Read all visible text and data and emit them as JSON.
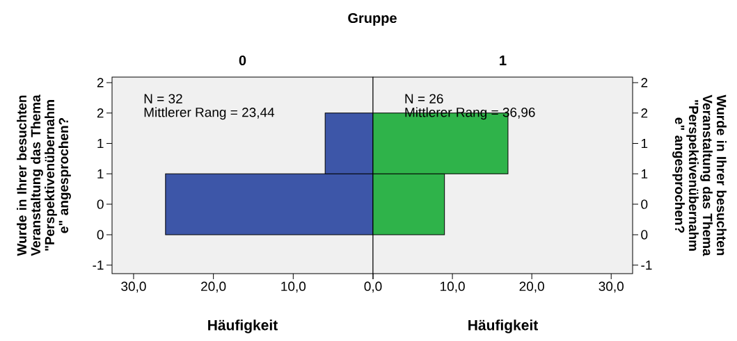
{
  "chart_data": [
    {
      "type": "histogram",
      "orientation": "horizontal",
      "title": "Gruppe",
      "subtitle": "0",
      "xlabel": "Häufigkeit",
      "ylabel": "Wurde in Ihrer besuchten Veranstaltung das Thema \"Perspektivenübernahm e\" angesprochen?",
      "bins": [
        -0.5,
        0.5,
        1.5
      ],
      "values": [
        26,
        6
      ],
      "color": "#3d56a8",
      "xlim": [
        32.7,
        0
      ],
      "xticks": [
        {
          "value": 30,
          "label": "30,0"
        },
        {
          "value": 20,
          "label": "20,0"
        },
        {
          "value": 10,
          "label": "10,0"
        },
        {
          "value": 0,
          "label": null
        }
      ],
      "ylim": [
        -1.14,
        2.09
      ],
      "yticks": [
        -1,
        {
          "value": -0.5,
          "label": "0"
        },
        0,
        {
          "value": 0.5,
          "label": "1"
        },
        1,
        {
          "value": 1.5,
          "label": "2"
        },
        2
      ],
      "annotations": [
        "N = 32",
        "Mittlerer Rang = 23,44"
      ]
    },
    {
      "type": "histogram",
      "orientation": "horizontal",
      "subtitle": "1",
      "xlabel": "Häufigkeit",
      "ylabel": "Wurde in Ihrer besuchten Veranstaltung das Thema \"Perspektivenübernahm e\" angesprochen?",
      "bins": [
        -0.5,
        0.5,
        1.5
      ],
      "values": [
        9,
        17
      ],
      "color": "#2fb34a",
      "xlim": [
        0,
        32.7
      ],
      "xticks": [
        {
          "value": 0,
          "label": "0,0"
        },
        {
          "value": 10,
          "label": "10,0"
        },
        {
          "value": 20,
          "label": "20,0"
        },
        {
          "value": 30,
          "label": "30,0"
        }
      ],
      "ylim": [
        -1.14,
        2.09
      ],
      "yticks": [
        -1,
        {
          "value": -0.5,
          "label": "0"
        },
        0,
        {
          "value": 0.5,
          "label": "1"
        },
        1,
        {
          "value": 1.5,
          "label": "2"
        },
        2
      ],
      "annotations": [
        "N = 26",
        "Mittlerer Rang = 36,96"
      ]
    }
  ]
}
